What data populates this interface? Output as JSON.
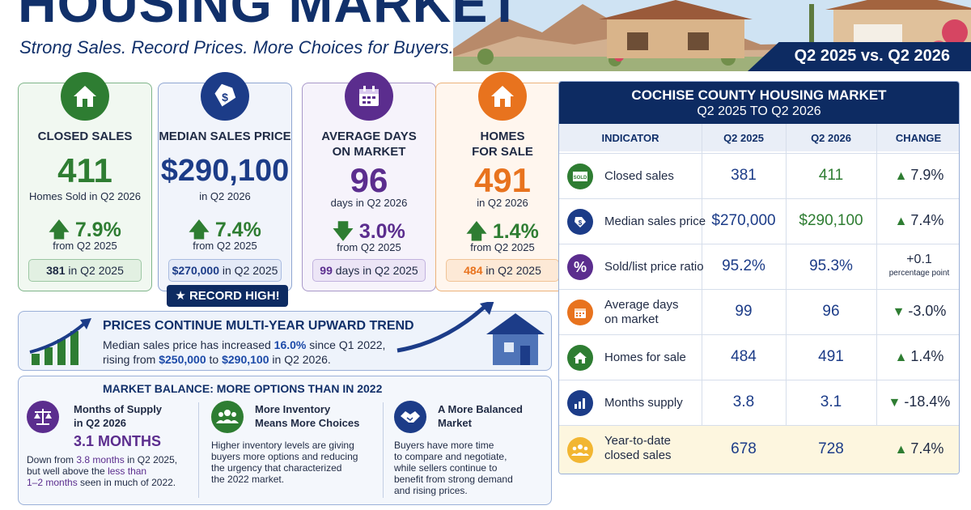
{
  "header": {
    "title": "HOUSING MARKET",
    "subtitle": "Strong Sales. Record Prices. More Choices for Buyers.",
    "period": "Q2 2025 vs. Q2 2026"
  },
  "cards": [
    {
      "label": "CLOSED SALES",
      "value": "411",
      "sub": "Homes Sold in Q2 2026",
      "change": "7.9%",
      "direction": "up",
      "from": "from Q2 2025",
      "prior_value": "381",
      "prior_suffix": "in Q2 2025",
      "icon": "house-icon",
      "color": "#2e7d32"
    },
    {
      "label": "MEDIAN SALES PRICE",
      "value": "$290,100",
      "sub": "in Q2 2026",
      "change": "7.4%",
      "direction": "up",
      "from": "from Q2 2025",
      "prior_value": "$270,000",
      "prior_suffix": "in Q2 2025",
      "icon": "price-tag-icon",
      "color": "#1c3c88"
    },
    {
      "label_line1": "AVERAGE DAYS",
      "label_line2": "ON MARKET",
      "value": "96",
      "sub": "days in Q2 2026",
      "change": "3.0%",
      "direction": "down",
      "from": "from Q2 2025",
      "prior_value": "99",
      "prior_suffix": "days in Q2 2025",
      "icon": "calendar-icon",
      "color": "#5b2d8e"
    },
    {
      "label_line1": "HOMES",
      "label_line2": "FOR SALE",
      "value": "491",
      "sub": "in Q2 2026",
      "change": "1.4%",
      "direction": "up",
      "from": "from Q2 2025",
      "prior_value": "484",
      "prior_suffix": "in Q2 2025",
      "icon": "home-sale-icon",
      "color": "#e8731e"
    }
  ],
  "record_badge": "RECORD HIGH!",
  "trend": {
    "title": "PRICES CONTINUE MULTI-YEAR UPWARD TREND",
    "line1_a": "Median sales price has increased ",
    "line1_hl": "16.0%",
    "line1_b": " since Q1 2022,",
    "line2_a": "rising from ",
    "line2_hl1": "$250,000",
    "line2_b": " to ",
    "line2_hl2": "$290,100",
    "line2_c": " in Q2 2026."
  },
  "balance": {
    "title": "MARKET BALANCE: MORE  OPTIONS THAN IN 2022",
    "col1": {
      "head1": "Months of Supply",
      "head2": "in Q2 2026",
      "value": "3.1 MONTHS",
      "t1_a": "Down from ",
      "t1_hl": "3.8 months",
      "t1_b": " in Q2 2025,",
      "t2_a": "but well above the ",
      "t2_hl": "less than",
      "t3_hl": "1–2 months",
      "t3_b": " seen in much of 2022."
    },
    "col2": {
      "head1": "More Inventory",
      "head2": "Means More Choices",
      "lines": [
        "Higher inventory levels are giving",
        "buyers more options and reducing",
        "the urgency that characterized",
        "the 2022 market."
      ]
    },
    "col3": {
      "head1": "A More Balanced",
      "head2": "Market",
      "lines": [
        "Buyers have more time",
        "to compare and negotiate,",
        "while sellers continue to",
        "benefit from strong demand",
        "and rising prices."
      ]
    }
  },
  "table": {
    "title": "COCHISE COUNTY HOUSING MARKET",
    "subtitle": "Q2 2025 TO Q2 2026",
    "columns": [
      "INDICATOR",
      "Q2 2025",
      "Q2 2026",
      "CHANGE"
    ],
    "rows": [
      {
        "name": "Closed sales",
        "q2025": "381",
        "q2026": "411",
        "change": "7.9%",
        "direction": "up",
        "icon": "sold-sign-icon",
        "color": "#2e7d32"
      },
      {
        "name": "Median sales price",
        "q2025": "$270,000",
        "q2026": "$290,100",
        "change": "7.4%",
        "direction": "up",
        "icon": "price-tag-icon",
        "color": "#1c3c88"
      },
      {
        "name": "Sold/list price ratio",
        "q2025": "95.2%",
        "q2026": "95.3%",
        "change": "+0.1",
        "change_note": "percentage point",
        "direction": "none",
        "icon": "percent-icon",
        "color": "#5b2d8e"
      },
      {
        "name_line1": "Average days",
        "name_line2": "on market",
        "q2025": "99",
        "q2026": "96",
        "change": "-3.0%",
        "direction": "down",
        "icon": "calendar-icon",
        "color": "#e8731e"
      },
      {
        "name": "Homes for sale",
        "q2025": "484",
        "q2026": "491",
        "change": "1.4%",
        "direction": "up",
        "icon": "house-icon",
        "color": "#2e7d32"
      },
      {
        "name": "Months supply",
        "q2025": "3.8",
        "q2026": "3.1",
        "change": "-18.4%",
        "direction": "down",
        "icon": "bar-chart-icon",
        "color": "#1c3c88"
      },
      {
        "name_line1": "Year-to-date",
        "name_line2": "closed sales",
        "q2025": "678",
        "q2026": "728",
        "change": "7.4%",
        "direction": "up",
        "icon": "people-icon",
        "color": "#f2b632"
      }
    ]
  }
}
